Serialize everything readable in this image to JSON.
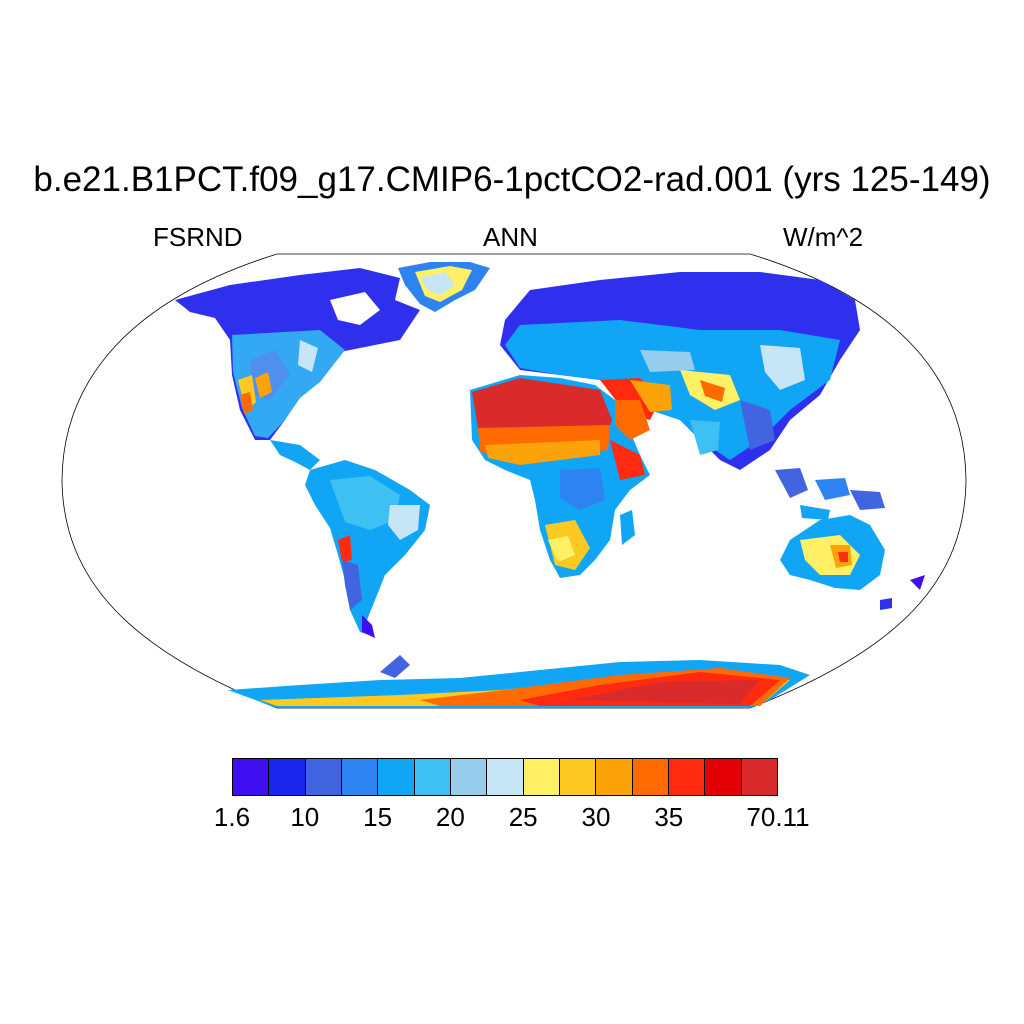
{
  "title": "b.e21.B1PCT.f09_g17.CMIP6-1pctCO2-rad.001 (yrs 125-149)",
  "left_label": "FSRND",
  "center_label": "ANN",
  "right_label": "W/m^2",
  "colorbar": {
    "colors": [
      "#3f0ff2",
      "#1a25ee",
      "#4364e0",
      "#2d83f1",
      "#10a5f5",
      "#3fc0f3",
      "#96ccec",
      "#c6e6f7",
      "#fff066",
      "#fdc922",
      "#fca30a",
      "#ff6b00",
      "#ff2a10",
      "#e20006",
      "#d92b2b"
    ],
    "tick_labels": [
      "1.6",
      "10",
      "15",
      "20",
      "25",
      "30",
      "35",
      "70.11"
    ]
  }
}
